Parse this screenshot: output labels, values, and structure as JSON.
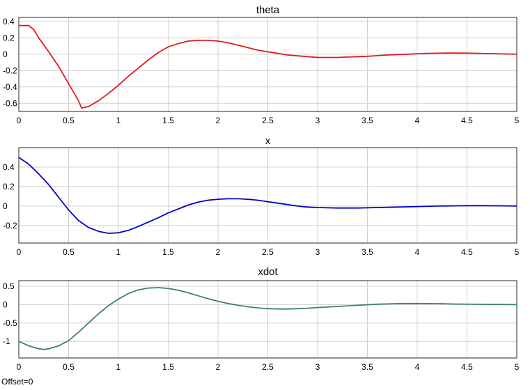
{
  "footer": {
    "offset": "Offset=0"
  },
  "chart_data": [
    {
      "type": "line",
      "title": "theta",
      "xlim": [
        0,
        5
      ],
      "ylim": [
        -0.7,
        0.45
      ],
      "xticks": [
        0,
        0.5,
        1,
        1.5,
        2,
        2.5,
        3,
        3.5,
        4,
        4.5,
        5
      ],
      "xtick_labels": [
        "0",
        "0.5",
        "1",
        "1.5",
        "2",
        "2.5",
        "3",
        "3.5",
        "4",
        "4.5",
        "5"
      ],
      "yticks": [
        -0.6,
        -0.4,
        -0.2,
        0,
        0.2,
        0.4
      ],
      "ytick_labels": [
        "-0.6",
        "-0.4",
        "-0.2",
        "0",
        "0.2",
        "0.4"
      ],
      "grid": true,
      "series": [
        {
          "color": "#e41a1c",
          "x": [
            0,
            0.1,
            0.15,
            0.2,
            0.3,
            0.4,
            0.5,
            0.6,
            0.63,
            0.7,
            0.8,
            0.9,
            1.0,
            1.1,
            1.2,
            1.3,
            1.4,
            1.5,
            1.6,
            1.7,
            1.8,
            1.9,
            2.0,
            2.1,
            2.2,
            2.3,
            2.4,
            2.5,
            2.6,
            2.7,
            2.8,
            2.9,
            3.0,
            3.1,
            3.2,
            3.3,
            3.5,
            3.7,
            3.9,
            4.1,
            4.3,
            4.5,
            4.7,
            5.0
          ],
          "y": [
            0.35,
            0.35,
            0.3,
            0.2,
            0.03,
            -0.15,
            -0.36,
            -0.57,
            -0.66,
            -0.64,
            -0.57,
            -0.48,
            -0.38,
            -0.27,
            -0.17,
            -0.07,
            0.02,
            0.09,
            0.13,
            0.16,
            0.17,
            0.17,
            0.16,
            0.14,
            0.11,
            0.08,
            0.05,
            0.03,
            0.01,
            -0.01,
            -0.02,
            -0.03,
            -0.04,
            -0.04,
            -0.04,
            -0.035,
            -0.025,
            -0.01,
            0.0,
            0.01,
            0.015,
            0.013,
            0.008,
            0.0
          ]
        }
      ]
    },
    {
      "type": "line",
      "title": "x",
      "xlim": [
        0,
        5
      ],
      "ylim": [
        -0.38,
        0.6
      ],
      "xticks": [
        0,
        0.5,
        1,
        1.5,
        2,
        2.5,
        3,
        3.5,
        4,
        4.5,
        5
      ],
      "xtick_labels": [
        "0",
        "0.5",
        "1",
        "1.5",
        "2",
        "2.5",
        "3",
        "3.5",
        "4",
        "4.5",
        "5"
      ],
      "yticks": [
        -0.2,
        0,
        0.2,
        0.4
      ],
      "ytick_labels": [
        "-0.2",
        "0",
        "0.2",
        "0.4"
      ],
      "grid": true,
      "series": [
        {
          "color": "#0000cc",
          "x": [
            0,
            0.1,
            0.2,
            0.3,
            0.4,
            0.5,
            0.6,
            0.7,
            0.8,
            0.9,
            1.0,
            1.1,
            1.2,
            1.3,
            1.4,
            1.5,
            1.6,
            1.7,
            1.8,
            1.9,
            2.0,
            2.1,
            2.2,
            2.3,
            2.4,
            2.5,
            2.6,
            2.7,
            2.8,
            2.9,
            3.0,
            3.2,
            3.4,
            3.6,
            3.8,
            4.0,
            4.2,
            4.4,
            4.6,
            4.8,
            5.0
          ],
          "y": [
            0.5,
            0.43,
            0.33,
            0.22,
            0.09,
            -0.04,
            -0.15,
            -0.22,
            -0.26,
            -0.28,
            -0.275,
            -0.25,
            -0.21,
            -0.165,
            -0.12,
            -0.07,
            -0.03,
            0.01,
            0.04,
            0.06,
            0.07,
            0.075,
            0.075,
            0.07,
            0.06,
            0.045,
            0.03,
            0.015,
            0.0,
            -0.01,
            -0.015,
            -0.02,
            -0.02,
            -0.015,
            -0.01,
            -0.005,
            0.0,
            0.003,
            0.004,
            0.003,
            0.0
          ]
        }
      ]
    },
    {
      "type": "line",
      "title": "xdot",
      "xlim": [
        0,
        5
      ],
      "ylim": [
        -1.45,
        0.65
      ],
      "xticks": [
        0,
        0.5,
        1,
        1.5,
        2,
        2.5,
        3,
        3.5,
        4,
        4.5,
        5
      ],
      "xtick_labels": [
        "0",
        "0.5",
        "1",
        "1.5",
        "2",
        "2.5",
        "3",
        "3.5",
        "4",
        "4.5",
        "5"
      ],
      "yticks": [
        -1,
        -0.5,
        0,
        0.5
      ],
      "ytick_labels": [
        "-1",
        "-0.5",
        "0",
        "0.5"
      ],
      "grid": true,
      "series": [
        {
          "color": "#3f7f6a",
          "x": [
            0,
            0.1,
            0.2,
            0.25,
            0.3,
            0.4,
            0.5,
            0.6,
            0.7,
            0.8,
            0.9,
            1.0,
            1.1,
            1.2,
            1.3,
            1.4,
            1.5,
            1.6,
            1.7,
            1.8,
            1.9,
            2.0,
            2.1,
            2.2,
            2.3,
            2.4,
            2.5,
            2.6,
            2.7,
            2.8,
            2.9,
            3.0,
            3.2,
            3.4,
            3.6,
            3.8,
            4.0,
            4.2,
            4.4,
            4.6,
            4.8,
            5.0
          ],
          "y": [
            -1.0,
            -1.12,
            -1.2,
            -1.22,
            -1.2,
            -1.12,
            -0.98,
            -0.75,
            -0.5,
            -0.25,
            -0.03,
            0.15,
            0.3,
            0.4,
            0.45,
            0.46,
            0.44,
            0.39,
            0.32,
            0.24,
            0.16,
            0.09,
            0.03,
            -0.02,
            -0.06,
            -0.09,
            -0.11,
            -0.12,
            -0.12,
            -0.11,
            -0.1,
            -0.08,
            -0.05,
            -0.02,
            0.01,
            0.025,
            0.03,
            0.025,
            0.015,
            0.008,
            0.003,
            0.0
          ]
        }
      ]
    }
  ]
}
